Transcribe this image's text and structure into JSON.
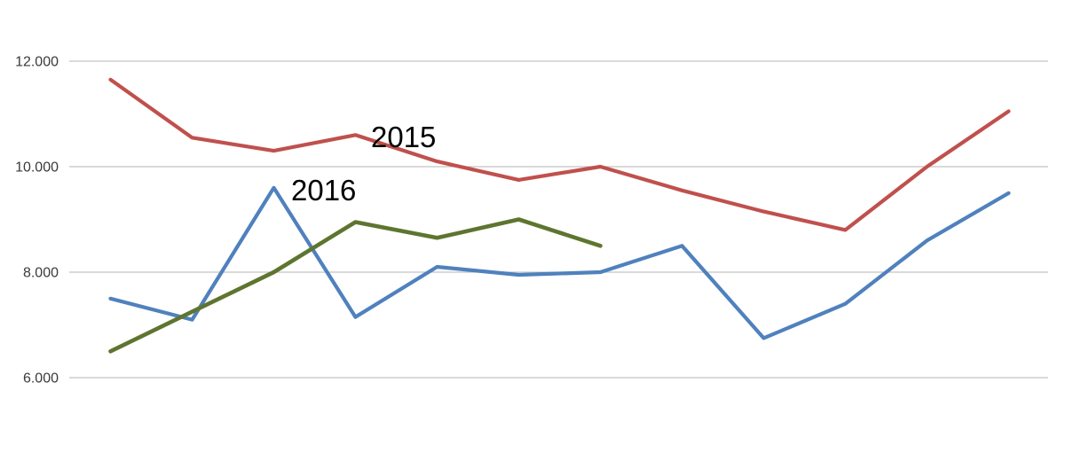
{
  "chart_data": {
    "type": "line",
    "title": "",
    "grid": "horizontal",
    "legend_position": "none (inline text annotations near lines)",
    "x_axis": {
      "labels_visible": false,
      "point_count": 12
    },
    "y_axis": {
      "side": "left",
      "number_format": "thousands with dot separator",
      "range_shown": [
        6000,
        12000
      ],
      "ticks": [
        {
          "label": "12.000",
          "value": 12000
        },
        {
          "label": "10.000",
          "value": 10000
        },
        {
          "label": "8.000",
          "value": 8000
        },
        {
          "label": "6.000",
          "value": 6000
        }
      ]
    },
    "series": [
      {
        "id": "blue-unlabeled",
        "label": null,
        "color": "#4F81BD",
        "stroke_width": 4.2,
        "values": [
          7500,
          7100,
          9600,
          7150,
          8100,
          7950,
          8000,
          8500,
          6750,
          7400,
          8600,
          9500
        ]
      },
      {
        "id": "series-2016",
        "label": "2016",
        "color": "#5E7530",
        "stroke_width": 4.6,
        "values": [
          6500,
          7250,
          8000,
          8950,
          8650,
          9000,
          8500
        ]
      },
      {
        "id": "series-2015",
        "label": "2015",
        "color": "#C0504D",
        "stroke_width": 4.2,
        "values": [
          11650,
          10550,
          10300,
          10600,
          10100,
          9750,
          10000,
          9550,
          9150,
          8800,
          10000,
          11050
        ]
      }
    ],
    "annotations": [
      {
        "text": "2015",
        "color": "#000000",
        "anchor_x": 418,
        "anchor_y": 166
      },
      {
        "text": "2016",
        "color": "#000000",
        "anchor_x": 328,
        "anchor_y": 226
      }
    ]
  }
}
